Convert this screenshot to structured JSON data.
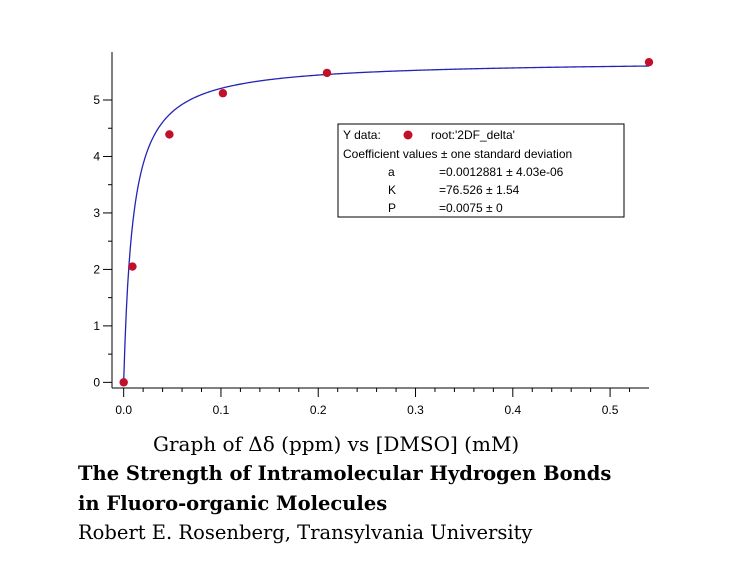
{
  "chart_data": {
    "type": "scatter",
    "x": [
      0.0,
      0.009,
      0.047,
      0.102,
      0.209,
      0.54
    ],
    "y": [
      0.0,
      2.05,
      4.39,
      5.12,
      5.48,
      5.67
    ],
    "xlim": [
      -0.012,
      0.54
    ],
    "ylim": [
      -0.1,
      5.85
    ],
    "xticks": [
      0.0,
      0.1,
      0.2,
      0.3,
      0.4,
      0.5
    ],
    "xtick_labels": [
      "0.0",
      "0.1",
      "0.2",
      "0.3",
      "0.4",
      "0.5"
    ],
    "yticks": [
      0,
      1,
      2,
      3,
      4,
      5
    ],
    "ytick_labels": [
      "0",
      "1",
      "2",
      "3",
      "4",
      "5"
    ],
    "fit": {
      "a": 0.0012881,
      "K": 76.526,
      "P": 0.0075
    },
    "marker_color": "#c0102a",
    "line_color": "#2424b4",
    "legend": {
      "series_label": "Y data:",
      "series_name": "root:'2DF_delta'",
      "header": "Coefficient values ± one standard deviation",
      "coefficients": [
        {
          "name": "a",
          "value": "=0.0012881 ± 4.03e-06"
        },
        {
          "name": "K",
          "value": "=76.526 ± 1.54"
        },
        {
          "name": "P",
          "value": "=0.0075 ± 0"
        }
      ]
    }
  },
  "captions": {
    "graph": "Graph of Δδ (ppm) vs [DMSO] (mM)",
    "title_line1": "The Strength of Intramolecular Hydrogen Bonds",
    "title_line2": "in Fluoro-organic Molecules",
    "author": "Robert E. Rosenberg, Transylvania University"
  }
}
